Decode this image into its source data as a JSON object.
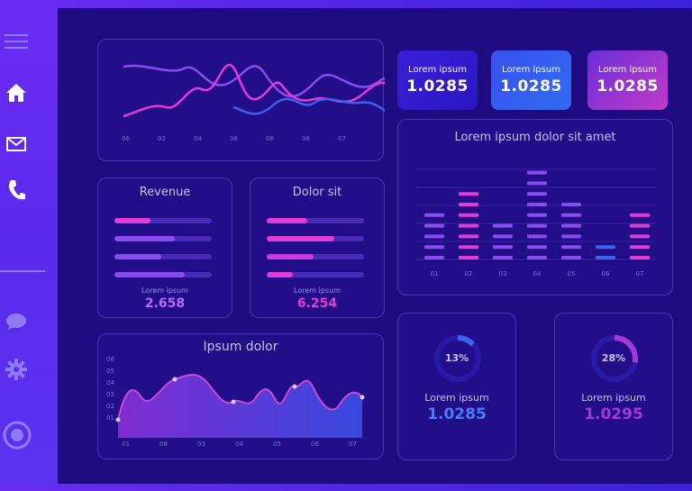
{
  "colors": {
    "pink": "#e33ad8",
    "violet": "#8a4bf0",
    "blue": "#3a63f0",
    "track": "#4a2ccf"
  },
  "sidebar": {
    "icons": [
      "menu-icon",
      "home-icon",
      "mail-icon",
      "phone-icon",
      "chat-icon",
      "gear-icon",
      "target-icon"
    ]
  },
  "stat_cards": [
    {
      "label": "Lorem ipsum",
      "value": "1.0285"
    },
    {
      "label": "Lorem ipsum",
      "value": "1.0285"
    },
    {
      "label": "Lorem ipsum",
      "value": "1.0285"
    }
  ],
  "line_panel": {
    "x_labels": [
      "06",
      "02",
      "04",
      "06",
      "08",
      "06",
      "07"
    ]
  },
  "revenue": {
    "title": "Revenue",
    "bars": [
      0.37,
      0.62,
      0.48,
      0.72
    ],
    "label": "Lorem ipsum",
    "value": "2.658"
  },
  "dolor": {
    "title": "Dolor sit",
    "bars": [
      0.42,
      0.69,
      0.48,
      0.27
    ],
    "label": "Lorem ipsum",
    "value": "6.254"
  },
  "area_panel": {
    "title": "Ipsum dolor",
    "y_labels": [
      "06",
      "05",
      "04",
      "03",
      "02",
      "01"
    ],
    "x_labels": [
      "01",
      "08",
      "03",
      "04",
      "05",
      "06",
      "07"
    ]
  },
  "chart_data": {
    "type": "bar",
    "title": "Lorem ipsum dolor sit amet",
    "categories": [
      "01",
      "02",
      "03",
      "04",
      "05",
      "06",
      "07"
    ],
    "values": [
      5,
      7,
      4,
      9,
      6,
      2,
      5
    ]
  },
  "donuts": [
    {
      "percent": "13%",
      "fraction": 0.13,
      "label": "Lorem ipsum",
      "value": "1.0285"
    },
    {
      "percent": "28%",
      "fraction": 0.28,
      "label": "Lorem ipsum",
      "value": "1.0295"
    }
  ]
}
